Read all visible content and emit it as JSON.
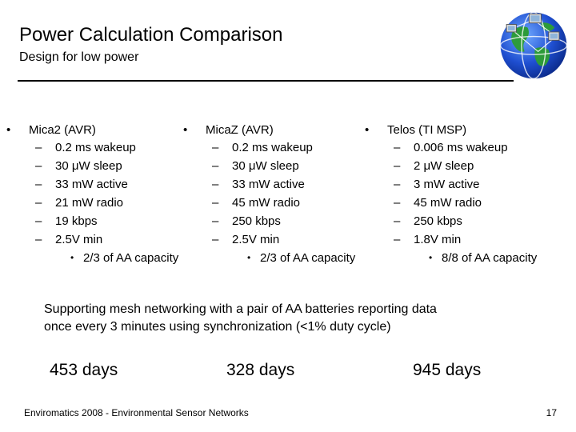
{
  "slide": {
    "title": "Power Calculation Comparison",
    "subtitle": "Design for low power",
    "bullet_glyph": "•",
    "dash_glyph": "–",
    "platforms": [
      {
        "name": "Mica2 (AVR)",
        "specs": [
          "0.2 ms wakeup",
          "30 μW sleep",
          "33 mW active",
          "21 mW radio",
          "19 kbps",
          "2.5V min"
        ],
        "note": "2/3 of AA capacity"
      },
      {
        "name": "MicaZ (AVR)",
        "specs": [
          "0.2 ms wakeup",
          "30 μW sleep",
          "33 mW active",
          "45 mW radio",
          "250 kbps",
          "2.5V min"
        ],
        "note": "2/3 of AA capacity"
      },
      {
        "name": "Telos (TI MSP)",
        "specs": [
          "0.006 ms wakeup",
          "2 μW sleep",
          "3 mW active",
          "45 mW radio",
          "250 kbps",
          "1.8V min"
        ],
        "note": "8/8 of AA capacity"
      }
    ],
    "summary_line1": "Supporting mesh networking with a pair of AA batteries reporting data",
    "summary_line2": "once every 3 minutes using synchronization (<1% duty cycle)",
    "days": [
      "453 days",
      "328 days",
      "945 days"
    ],
    "footer": "Enviromatics 2008 - Environmental Sensor Networks",
    "page_number": "17",
    "logo_icon": "globe-with-computers-icon"
  }
}
